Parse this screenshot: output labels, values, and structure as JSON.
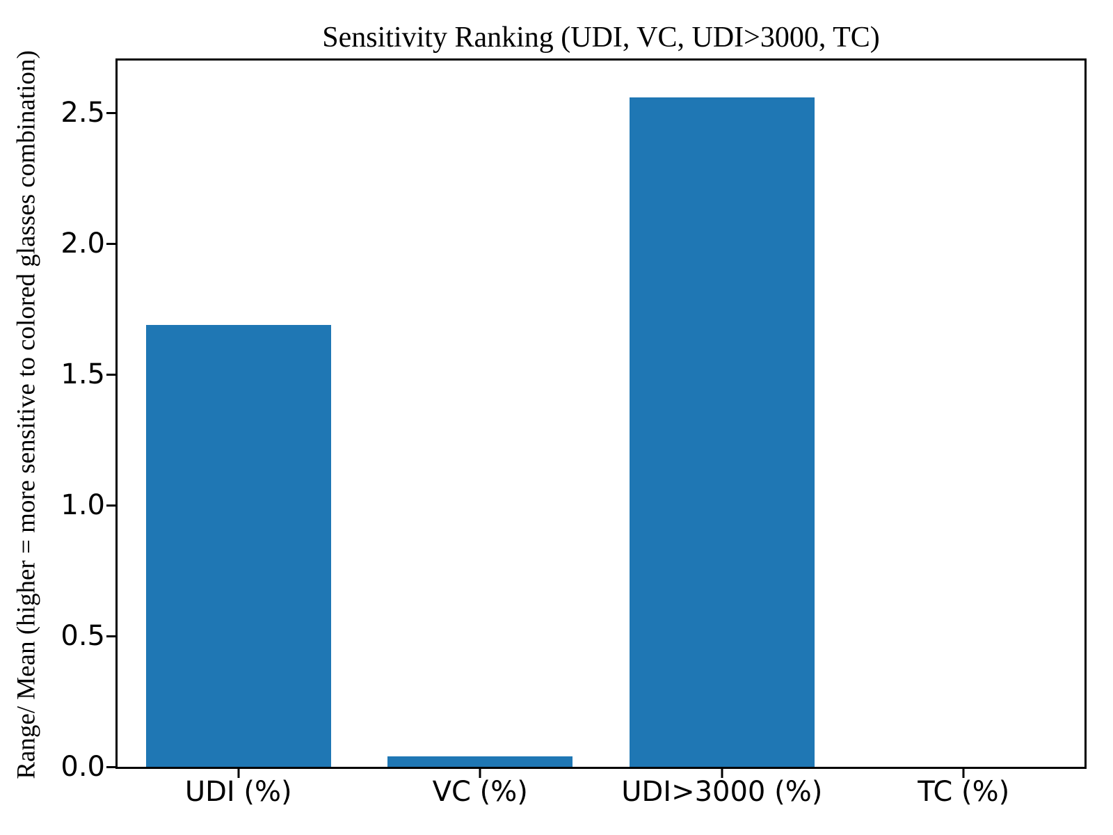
{
  "chart_data": {
    "type": "bar",
    "title": "Sensitivity Ranking (UDI, VC, UDI>3000, TC)",
    "ylabel": "Range/ Mean (higher = more sensitive to colored glasses  combination)",
    "xlabel": "",
    "categories": [
      "UDI (%)",
      "VC (%)",
      "UDI>3000 (%)",
      "TC (%)"
    ],
    "values": [
      1.69,
      0.04,
      2.56,
      0.0
    ],
    "ytick_labels": [
      "0.0",
      "0.5",
      "1.0",
      "1.5",
      "2.0",
      "2.5"
    ],
    "ytick_values": [
      0.0,
      0.5,
      1.0,
      1.5,
      2.0,
      2.5
    ],
    "ylim": [
      0,
      2.7
    ],
    "bar_color": "#1f77b4",
    "spine_color": "#000000",
    "grid": false,
    "legend_position": "none"
  }
}
